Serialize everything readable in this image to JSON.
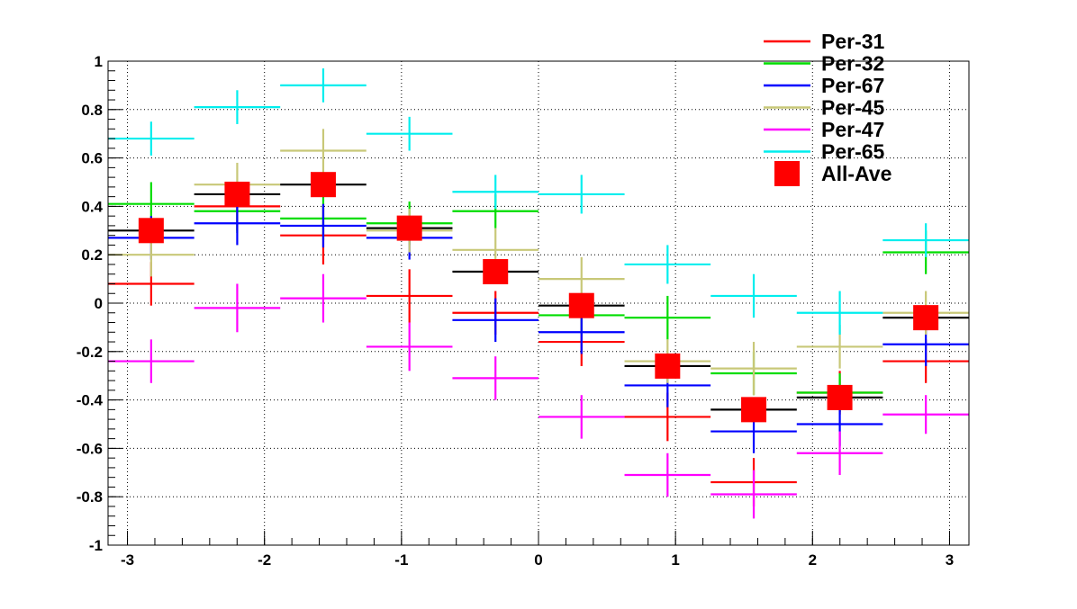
{
  "chart_data": {
    "type": "scatter",
    "title": "",
    "xlabel": "",
    "ylabel": "",
    "xlim": [
      -3.1416,
      3.1416
    ],
    "ylim": [
      -1,
      1
    ],
    "grid": true,
    "legend_position": "top-right",
    "x_ticks": [
      -3,
      -2,
      -1,
      0,
      1,
      2,
      3
    ],
    "x_tick_labels": [
      "-3",
      "-2",
      "-1",
      "0",
      "1",
      "2",
      "3"
    ],
    "y_ticks": [
      -1,
      -0.8,
      -0.6,
      -0.4,
      -0.2,
      0,
      0.2,
      0.4,
      0.6,
      0.8,
      1
    ],
    "y_tick_labels": [
      "-1",
      "-0.8",
      "-0.6",
      "-0.4",
      "-0.2",
      "0",
      "0.2",
      "0.4",
      "0.6",
      "0.8",
      "1"
    ],
    "x_bin_width": 0.6283,
    "x": [
      -2.827,
      -2.199,
      -1.571,
      -0.942,
      -0.314,
      0.314,
      0.942,
      1.571,
      2.199,
      2.827
    ],
    "series": [
      {
        "name": "Per-31",
        "color": "#ff0000",
        "style": "cross",
        "values": [
          0.08,
          0.4,
          0.28,
          0.03,
          -0.04,
          -0.16,
          -0.47,
          -0.74,
          -0.37,
          -0.24
        ],
        "errors": [
          0.09,
          0.1,
          0.12,
          0.11,
          0.09,
          0.1,
          0.1,
          0.1,
          0.09,
          0.09
        ]
      },
      {
        "name": "Per-32",
        "color": "#00dd00",
        "style": "cross",
        "values": [
          0.41,
          0.38,
          0.35,
          0.33,
          0.38,
          -0.05,
          -0.06,
          -0.29,
          -0.37,
          0.21
        ],
        "errors": [
          0.09,
          0.09,
          0.09,
          0.09,
          0.07,
          0.08,
          0.09,
          0.09,
          0.08,
          0.09
        ]
      },
      {
        "name": "Per-67",
        "color": "#0000ff",
        "style": "cross",
        "values": [
          0.27,
          0.33,
          0.32,
          0.27,
          -0.07,
          -0.12,
          -0.34,
          -0.53,
          -0.5,
          -0.17
        ],
        "errors": [
          0.09,
          0.09,
          0.09,
          0.09,
          0.09,
          0.09,
          0.09,
          0.09,
          0.09,
          0.09
        ]
      },
      {
        "name": "Per-45",
        "color": "#c8c878",
        "style": "cross",
        "values": [
          0.2,
          0.49,
          0.63,
          0.3,
          0.22,
          0.1,
          -0.24,
          -0.27,
          -0.18,
          -0.04
        ],
        "errors": [
          0.09,
          0.09,
          0.09,
          0.09,
          0.09,
          0.09,
          0.09,
          0.11,
          0.09,
          0.09
        ]
      },
      {
        "name": "Per-47",
        "color": "#ff00ff",
        "style": "cross",
        "values": [
          -0.24,
          -0.02,
          0.02,
          -0.18,
          -0.31,
          -0.47,
          -0.71,
          -0.79,
          -0.62,
          -0.46
        ],
        "errors": [
          0.09,
          0.1,
          0.1,
          0.1,
          0.09,
          0.09,
          0.09,
          0.1,
          0.09,
          0.08
        ]
      },
      {
        "name": "Per-65",
        "color": "#00eeee",
        "style": "cross",
        "values": [
          0.68,
          0.81,
          0.9,
          0.7,
          0.46,
          0.45,
          0.16,
          0.03,
          -0.04,
          0.26
        ],
        "errors": [
          0.07,
          0.07,
          0.07,
          0.07,
          0.07,
          0.08,
          0.08,
          0.09,
          0.09,
          0.07
        ]
      },
      {
        "name": "All-Ave",
        "color": "#ff0000",
        "line_color": "#000000",
        "style": "square",
        "values": [
          0.3,
          0.45,
          0.49,
          0.31,
          0.13,
          -0.01,
          -0.26,
          -0.44,
          -0.39,
          -0.06
        ]
      }
    ]
  }
}
